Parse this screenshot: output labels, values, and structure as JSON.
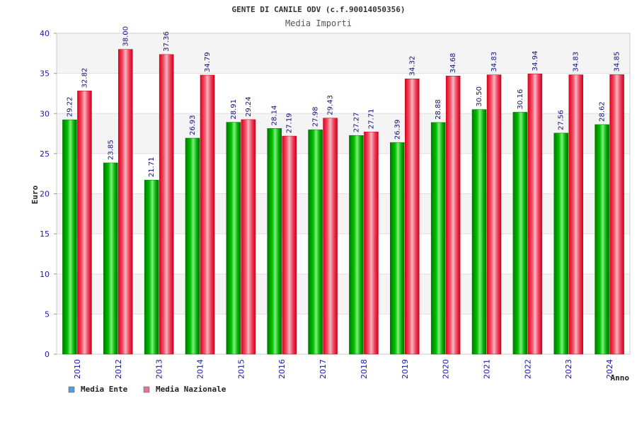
{
  "chart_data": {
    "type": "bar",
    "title": "GENTE DI CANILE ODV (c.f.90014050356)",
    "subtitle": "Media Importi",
    "xlabel": "Anno",
    "ylabel": "Euro",
    "ylim": [
      0,
      40
    ],
    "yticks": [
      0,
      5,
      10,
      15,
      20,
      25,
      30,
      35,
      40
    ],
    "categories": [
      "2010",
      "2012",
      "2013",
      "2014",
      "2015",
      "2016",
      "2017",
      "2018",
      "2019",
      "2020",
      "2021",
      "2022",
      "2023",
      "2024"
    ],
    "series": [
      {
        "name": "Media Ente",
        "values": [
          29.22,
          23.85,
          21.71,
          26.93,
          28.91,
          28.14,
          27.98,
          27.27,
          26.39,
          28.88,
          30.5,
          30.16,
          27.56,
          28.62
        ],
        "labels": [
          "29.22",
          "23.85",
          "21.71",
          "26.93",
          "28.91",
          "28.14",
          "27.98",
          "27.27",
          "26.39",
          "28.88",
          "30.50",
          "30.16",
          "27.56",
          "28.62"
        ]
      },
      {
        "name": "Media Nazionale",
        "values": [
          32.82,
          38.0,
          37.36,
          34.79,
          29.24,
          27.19,
          29.43,
          27.71,
          34.32,
          34.68,
          34.83,
          34.94,
          34.83,
          34.85
        ],
        "labels": [
          "32.82",
          "38.00",
          "37.36",
          "34.79",
          "29.24",
          "27.19",
          "29.43",
          "27.71",
          "34.32",
          "34.68",
          "34.83",
          "34.94",
          "34.83",
          "34.85"
        ]
      }
    ],
    "legend": [
      {
        "label": "Media Ente",
        "color": "#5b9bd5"
      },
      {
        "label": "Media Nazionale",
        "color": "#d87a9a"
      }
    ],
    "colors": {
      "ente": "#00b000",
      "nazionale": "#e8001c"
    },
    "grid": true,
    "legend_position": "bottom-left"
  }
}
